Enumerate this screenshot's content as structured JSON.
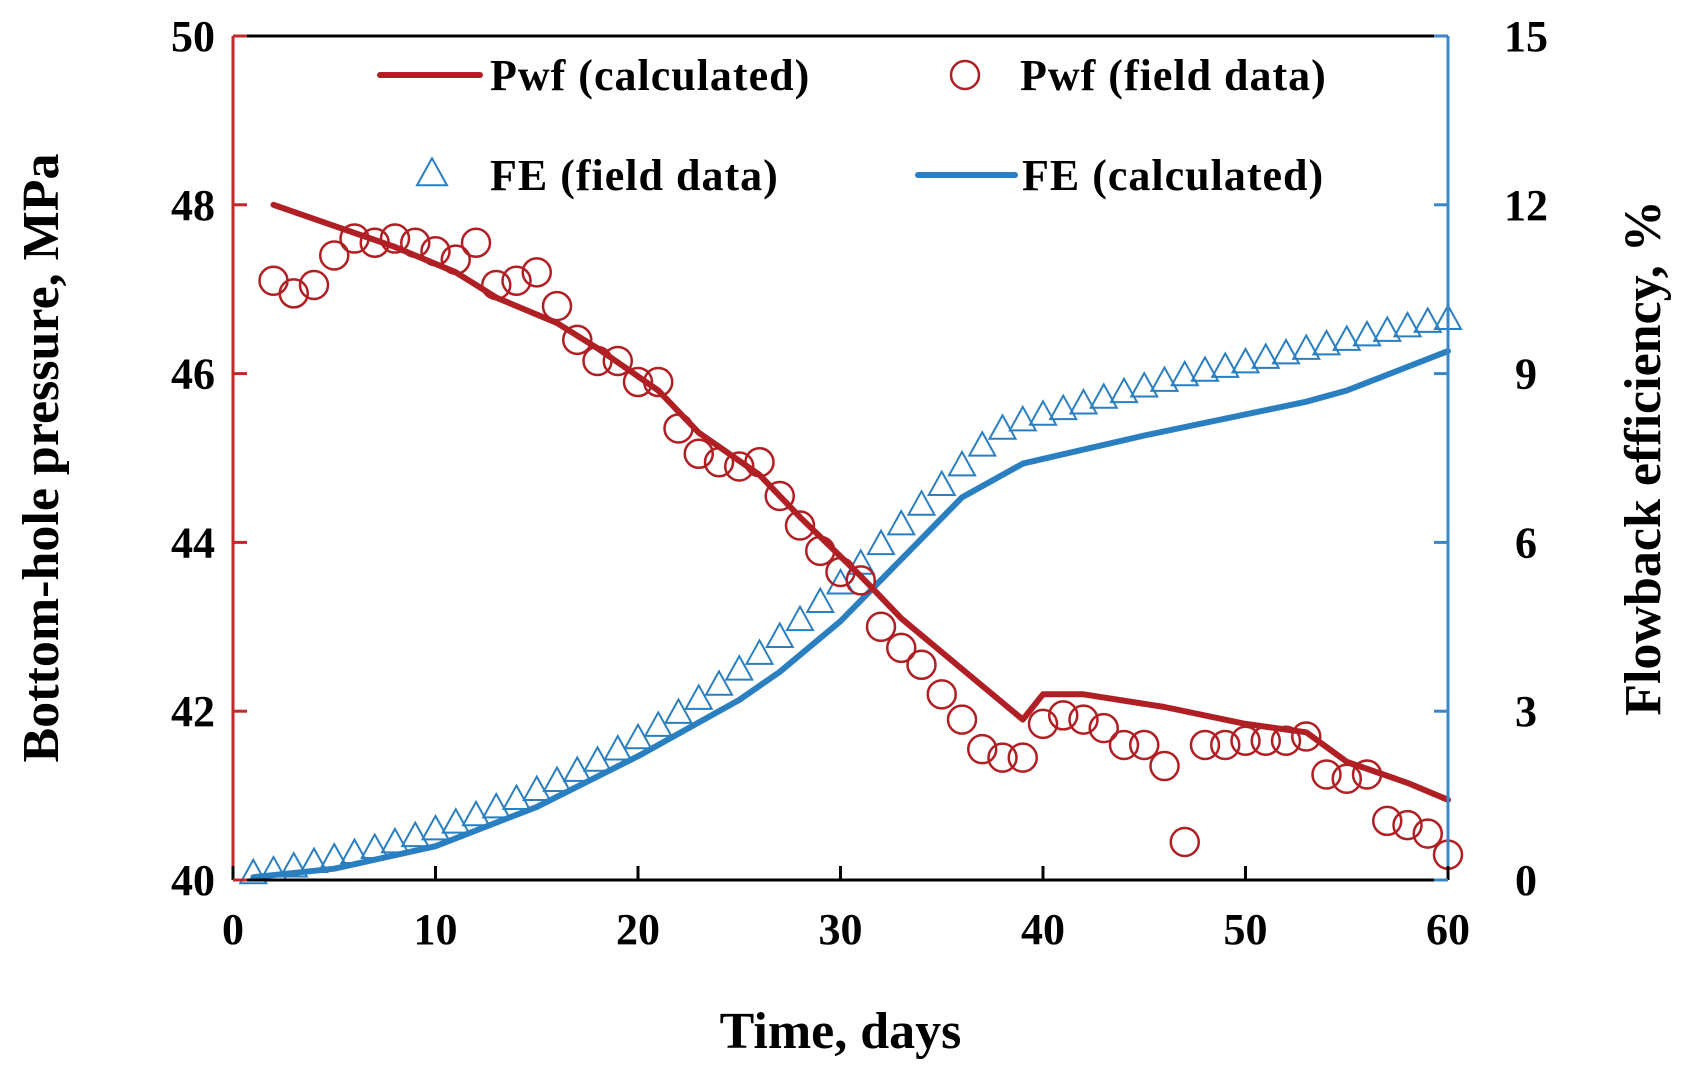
{
  "chart_data": {
    "type": "line",
    "title": "",
    "xlabel": "Time, days",
    "ylabel": "Bottom-hole pressure, MPa",
    "y2label": "Flowback efficiency, %",
    "xlim": [
      0,
      60
    ],
    "ylim": [
      40,
      50
    ],
    "y2lim": [
      0,
      15
    ],
    "xticks": [
      "0",
      "10",
      "20",
      "30",
      "40",
      "50",
      "60"
    ],
    "yticks": [
      "40",
      "42",
      "44",
      "46",
      "48",
      "50"
    ],
    "y2ticks": [
      "0",
      "3",
      "6",
      "9",
      "12",
      "15"
    ],
    "grid": false,
    "legend_position": "top",
    "colors": {
      "pwf": "#b01f24",
      "fe": "#2a7fc0",
      "axis_left": "#c0282d",
      "axis_right": "#3a86c8",
      "frame": "#000000"
    },
    "legend": [
      {
        "label": "Pwf (calculated)",
        "marker": "line",
        "series": "pwf_calc"
      },
      {
        "label": "Pwf (field data)",
        "marker": "circle",
        "series": "pwf_field"
      },
      {
        "label": "FE (field data)",
        "marker": "triangle",
        "series": "fe_field"
      },
      {
        "label": "FE (calculated)",
        "marker": "line",
        "series": "fe_calc"
      }
    ],
    "series": [
      {
        "name": "Pwf (calculated)",
        "axis": "left",
        "style": "line",
        "x": [
          2,
          5,
          8,
          11,
          13,
          16,
          18,
          21,
          23,
          26,
          28,
          31,
          33,
          36,
          39,
          40,
          42,
          46,
          50,
          53,
          55,
          58,
          60
        ],
        "y": [
          48.0,
          47.75,
          47.5,
          47.2,
          46.9,
          46.6,
          46.3,
          45.8,
          45.3,
          44.8,
          44.3,
          43.6,
          43.1,
          42.5,
          41.9,
          42.2,
          42.2,
          42.05,
          41.85,
          41.75,
          41.4,
          41.15,
          40.95
        ]
      },
      {
        "name": "Pwf (field data)",
        "axis": "left",
        "style": "circle",
        "x": [
          2,
          3,
          4,
          5,
          6,
          7,
          8,
          9,
          10,
          11,
          12,
          13,
          14,
          15,
          16,
          17,
          18,
          19,
          20,
          21,
          22,
          23,
          24,
          25,
          26,
          27,
          28,
          29,
          30,
          31,
          32,
          33,
          34,
          35,
          36,
          37,
          38,
          39,
          40,
          41,
          42,
          43,
          44,
          45,
          46,
          47,
          48,
          49,
          50,
          51,
          52,
          53,
          54,
          55,
          56,
          57,
          58,
          59,
          60
        ],
        "y": [
          47.1,
          46.95,
          47.05,
          47.4,
          47.6,
          47.55,
          47.6,
          47.55,
          47.45,
          47.35,
          47.55,
          47.05,
          47.1,
          47.2,
          46.8,
          46.4,
          46.15,
          46.15,
          45.9,
          45.9,
          45.35,
          45.05,
          44.95,
          44.9,
          44.95,
          44.55,
          44.2,
          43.9,
          43.65,
          43.55,
          43.0,
          42.75,
          42.55,
          42.2,
          41.9,
          41.55,
          41.45,
          41.45,
          41.85,
          41.95,
          41.9,
          41.8,
          41.6,
          41.6,
          41.35,
          40.45,
          41.6,
          41.6,
          41.65,
          41.65,
          41.65,
          41.7,
          41.25,
          41.2,
          41.25,
          40.7,
          40.65,
          40.55,
          40.3
        ]
      },
      {
        "name": "FE (field data)",
        "axis": "right",
        "style": "triangle",
        "x": [
          1,
          2,
          3,
          4,
          5,
          6,
          7,
          8,
          9,
          10,
          11,
          12,
          13,
          14,
          15,
          16,
          17,
          18,
          19,
          20,
          21,
          22,
          23,
          24,
          25,
          26,
          27,
          28,
          29,
          30,
          31,
          32,
          33,
          34,
          35,
          36,
          37,
          38,
          39,
          40,
          41,
          42,
          43,
          44,
          45,
          46,
          47,
          48,
          49,
          50,
          51,
          52,
          53,
          54,
          55,
          56,
          57,
          58,
          59,
          60
        ],
        "y": [
          0.1,
          0.15,
          0.22,
          0.3,
          0.38,
          0.46,
          0.55,
          0.65,
          0.76,
          0.88,
          1.0,
          1.13,
          1.27,
          1.42,
          1.58,
          1.74,
          1.92,
          2.1,
          2.3,
          2.5,
          2.72,
          2.95,
          3.2,
          3.45,
          3.72,
          4.0,
          4.3,
          4.6,
          4.92,
          5.25,
          5.6,
          5.95,
          6.3,
          6.65,
          7.0,
          7.35,
          7.7,
          8.0,
          8.15,
          8.25,
          8.35,
          8.45,
          8.55,
          8.65,
          8.75,
          8.85,
          8.95,
          9.03,
          9.1,
          9.18,
          9.26,
          9.34,
          9.42,
          9.5,
          9.58,
          9.66,
          9.74,
          9.82,
          9.9,
          9.95
        ]
      },
      {
        "name": "FE (calculated)",
        "axis": "right",
        "style": "line",
        "x": [
          1,
          5,
          10,
          15,
          20,
          25,
          27,
          30,
          33,
          36,
          39,
          45,
          53,
          55,
          60
        ],
        "y": [
          0.05,
          0.2,
          0.6,
          1.3,
          2.2,
          3.2,
          3.7,
          4.6,
          5.7,
          6.8,
          7.4,
          7.9,
          8.5,
          8.7,
          9.4
        ]
      }
    ]
  }
}
